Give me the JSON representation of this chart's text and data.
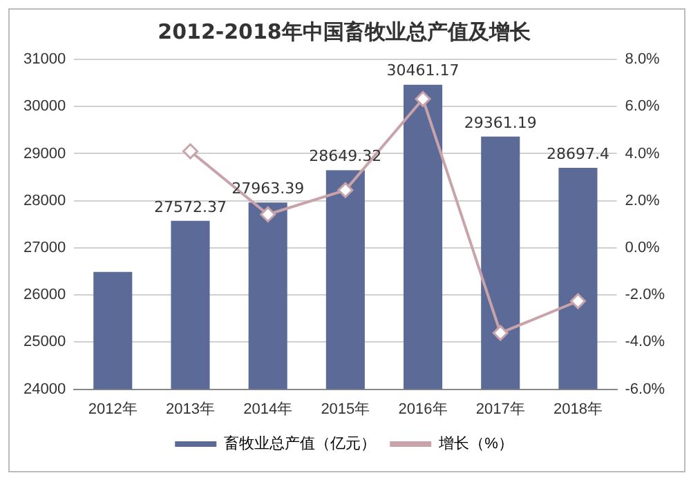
{
  "chart_data": {
    "type": "bar",
    "title": "2012-2018年中国畜牧业总产值及增长",
    "categories": [
      "2012年",
      "2013年",
      "2014年",
      "2015年",
      "2016年",
      "2017年",
      "2018年"
    ],
    "series": [
      {
        "name": "畜牧业总产值（亿元）",
        "color": "#5b6a96",
        "values": [
          26490,
          27572.37,
          27963.39,
          28649.32,
          30461.17,
          29361.19,
          28697.4
        ],
        "value_labels": [
          null,
          "27572.37",
          "27963.39",
          "28649.32",
          "30461.17",
          "29361.19",
          "28697.4"
        ]
      },
      {
        "name": "增长（%）",
        "type": "line",
        "axis": "y2",
        "color": "#c9a3aa",
        "marker": "diamond",
        "values": [
          null,
          4.1,
          1.42,
          2.45,
          6.32,
          -3.61,
          -2.26
        ]
      }
    ],
    "ylim": [
      24000,
      31000
    ],
    "yticks": [
      24000,
      25000,
      26000,
      27000,
      28000,
      29000,
      30000,
      31000
    ],
    "y2lim": [
      -6,
      8
    ],
    "y2ticks": [
      {
        "value": -6,
        "label": "-6.0%"
      },
      {
        "value": -4,
        "label": "-4.0%"
      },
      {
        "value": -2,
        "label": "-2.0%"
      },
      {
        "value": 0,
        "label": "0.0%"
      },
      {
        "value": 2,
        "label": "2.0%"
      },
      {
        "value": 4,
        "label": "4.0%"
      },
      {
        "value": 6,
        "label": "6.0%"
      },
      {
        "value": 8,
        "label": "8.0%"
      }
    ],
    "grid": "y",
    "legend": "bottom"
  }
}
